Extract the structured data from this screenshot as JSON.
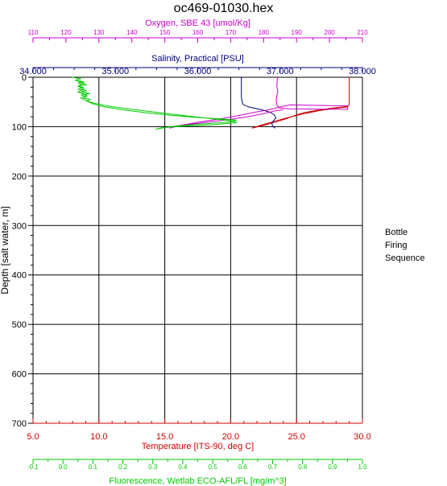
{
  "window": {
    "title": "oc469-01030.hex"
  },
  "side_label": {
    "line1": "Bottle",
    "line2": "Firing",
    "line3": "Sequence"
  },
  "colors": {
    "oxygen": "#cc00cc",
    "salinity": "#000080",
    "temperature": "#cc0000",
    "fluorescence": "#00cc00",
    "grid": "#000000"
  },
  "chart_data": {
    "type": "line",
    "title": "oc469-01030.hex",
    "grid": true,
    "y_axis": {
      "label": "Depth [salt water, m]",
      "range": [
        0,
        700
      ],
      "ticks": [
        "0",
        "100",
        "200",
        "300",
        "400",
        "500",
        "600",
        "700"
      ],
      "inverted": true
    },
    "x_axes": [
      {
        "id": "oxygen",
        "label": "Oxygen, SBE 43 [umol/Kg]",
        "range": [
          110,
          210
        ],
        "ticks": [
          "110",
          "120",
          "130",
          "140",
          "150",
          "160",
          "170",
          "180",
          "190",
          "200",
          "210"
        ],
        "position": "top-outer",
        "color": "#cc00cc"
      },
      {
        "id": "salinity",
        "label": "Salinity, Practical [PSU]",
        "range": [
          34,
          38
        ],
        "ticks": [
          "34.000",
          "35.000",
          "36.000",
          "37.000",
          "38.000"
        ],
        "position": "top-inner",
        "color": "#000080"
      },
      {
        "id": "temperature",
        "label": "Temperature [ITS-90, deg C]",
        "range": [
          5,
          30
        ],
        "ticks": [
          "5.0",
          "10.0",
          "15.0",
          "20.0",
          "25.0",
          "30.0"
        ],
        "position": "bottom-inner",
        "color": "#cc0000"
      },
      {
        "id": "fluorescence",
        "label": "Fluorescence, Wetlab ECO-AFL/FL [mg/m^3]",
        "range": [
          -0.1,
          1.0
        ],
        "ticks": [
          "-0.1",
          "0.0",
          "0.1",
          "0.2",
          "0.3",
          "0.4",
          "0.5",
          "0.6",
          "0.7",
          "0.8",
          "0.9",
          "1.0"
        ],
        "position": "bottom-outer",
        "color": "#00cc00"
      }
    ],
    "series": [
      {
        "axis": "temperature",
        "color": "#cc0000",
        "points": [
          [
            29.0,
            0
          ],
          [
            29.0,
            20
          ],
          [
            29.0,
            40
          ],
          [
            29.0,
            55
          ],
          [
            28.9,
            59
          ],
          [
            27.5,
            63
          ],
          [
            26.5,
            67
          ],
          [
            25.5,
            72
          ],
          [
            24.8,
            78
          ],
          [
            24.2,
            84
          ],
          [
            23.6,
            89
          ],
          [
            22.8,
            95
          ],
          [
            22.1,
            100
          ],
          [
            21.6,
            103
          ],
          [
            22.3,
            97
          ],
          [
            23.2,
            90
          ],
          [
            24.3,
            82
          ],
          [
            25.5,
            74
          ],
          [
            26.8,
            67
          ],
          [
            28.2,
            62
          ],
          [
            28.9,
            60
          ]
        ]
      },
      {
        "axis": "salinity",
        "color": "#000080",
        "points": [
          [
            36.53,
            0
          ],
          [
            36.53,
            20
          ],
          [
            36.53,
            40
          ],
          [
            36.54,
            50
          ],
          [
            36.55,
            55
          ],
          [
            36.62,
            60
          ],
          [
            36.78,
            66
          ],
          [
            36.88,
            71
          ],
          [
            36.93,
            76
          ],
          [
            36.95,
            82
          ],
          [
            36.92,
            88
          ],
          [
            36.9,
            93
          ],
          [
            36.91,
            99
          ],
          [
            36.94,
            103
          ]
        ]
      },
      {
        "axis": "oxygen",
        "color": "#cc00cc",
        "points": [
          [
            184.2,
            0
          ],
          [
            184.1,
            8
          ],
          [
            184.0,
            18
          ],
          [
            184.3,
            28
          ],
          [
            184.0,
            38
          ],
          [
            183.8,
            48
          ],
          [
            184.0,
            56
          ],
          [
            184.8,
            62
          ],
          [
            188.0,
            64
          ],
          [
            205.5,
            65
          ],
          [
            205.5,
            58
          ],
          [
            188.0,
            56
          ],
          [
            185.0,
            60
          ],
          [
            181.5,
            66
          ],
          [
            178.0,
            70
          ],
          [
            173.5,
            76
          ],
          [
            168.0,
            83
          ],
          [
            161.0,
            90
          ],
          [
            155.0,
            97
          ],
          [
            151.5,
            103
          ],
          [
            153.0,
            99
          ],
          [
            158.0,
            95
          ],
          [
            164.0,
            90
          ],
          [
            170.0,
            85
          ],
          [
            176.0,
            79
          ],
          [
            180.5,
            73
          ],
          [
            183.5,
            68
          ],
          [
            186.0,
            66
          ]
        ]
      },
      {
        "axis": "fluorescence",
        "color": "#00cc00",
        "points": [
          [
            0.03,
            0
          ],
          [
            0.06,
            3
          ],
          [
            0.04,
            6
          ],
          [
            0.07,
            9
          ],
          [
            0.05,
            12
          ],
          [
            0.08,
            15
          ],
          [
            0.05,
            18
          ],
          [
            0.07,
            21
          ],
          [
            0.05,
            24
          ],
          [
            0.08,
            27
          ],
          [
            0.06,
            30
          ],
          [
            0.09,
            33
          ],
          [
            0.06,
            36
          ],
          [
            0.08,
            39
          ],
          [
            0.07,
            42
          ],
          [
            0.09,
            45
          ],
          [
            0.08,
            48
          ],
          [
            0.1,
            52
          ],
          [
            0.13,
            56
          ],
          [
            0.17,
            60
          ],
          [
            0.23,
            65
          ],
          [
            0.3,
            70
          ],
          [
            0.37,
            75
          ],
          [
            0.44,
            80
          ],
          [
            0.5,
            84
          ],
          [
            0.56,
            88
          ],
          [
            0.58,
            92
          ],
          [
            0.5,
            96
          ],
          [
            0.4,
            99
          ],
          [
            0.33,
            102
          ],
          [
            0.31,
            105
          ],
          [
            0.36,
            100
          ],
          [
            0.45,
            95
          ],
          [
            0.55,
            91
          ],
          [
            0.58,
            87
          ],
          [
            0.52,
            84
          ],
          [
            0.44,
            81
          ],
          [
            0.36,
            77
          ],
          [
            0.28,
            72
          ],
          [
            0.2,
            66
          ],
          [
            0.14,
            60
          ],
          [
            0.1,
            54
          ],
          [
            0.08,
            48
          ],
          [
            0.06,
            42
          ],
          [
            0.08,
            36
          ],
          [
            0.05,
            30
          ],
          [
            0.07,
            24
          ],
          [
            0.05,
            18
          ],
          [
            0.07,
            12
          ],
          [
            0.04,
            6
          ]
        ]
      }
    ]
  }
}
